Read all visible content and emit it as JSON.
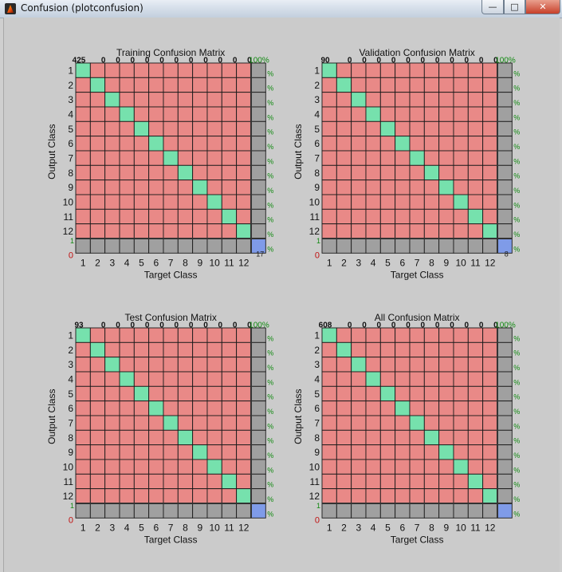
{
  "window": {
    "title": "Confusion (plotconfusion)",
    "min_glyph": "—",
    "max_glyph": "□",
    "close_glyph": "✕"
  },
  "colors": {
    "correct": "#76e1ad",
    "wrong": "#e98987",
    "summary": "#a0a0a0",
    "total": "#7f9be8",
    "grid": "#1a1a1a",
    "pct_green": "#118a11",
    "pct_red": "#c01010"
  },
  "shared": {
    "xlabel": "Target Class",
    "ylabel": "Output Class",
    "x_ticks": [
      "1",
      "2",
      "3",
      "4",
      "5",
      "6",
      "7",
      "8",
      "9",
      "10",
      "11",
      "12"
    ],
    "y_ticks": [
      "1",
      "2",
      "3",
      "4",
      "5",
      "6",
      "7",
      "8",
      "9",
      "10",
      "11",
      "12"
    ],
    "summary_pct_glyph": "%",
    "bottom_zero": "0"
  },
  "matrices": [
    {
      "title": "Training Confusion Matrix",
      "first_cell": "425",
      "pct_label": "100%",
      "tl_digit": "1",
      "br_digit": "17"
    },
    {
      "title": "Validation Confusion Matrix",
      "first_cell": "90",
      "pct_label": "100%",
      "tl_digit": "1",
      "br_digit": "8"
    },
    {
      "title": "Test Confusion Matrix",
      "first_cell": "93",
      "pct_label": "100%",
      "tl_digit": "1",
      "br_digit": ""
    },
    {
      "title": "All Confusion Matrix",
      "first_cell": "608",
      "pct_label": "100%",
      "tl_digit": "1",
      "br_digit": ""
    }
  ]
}
